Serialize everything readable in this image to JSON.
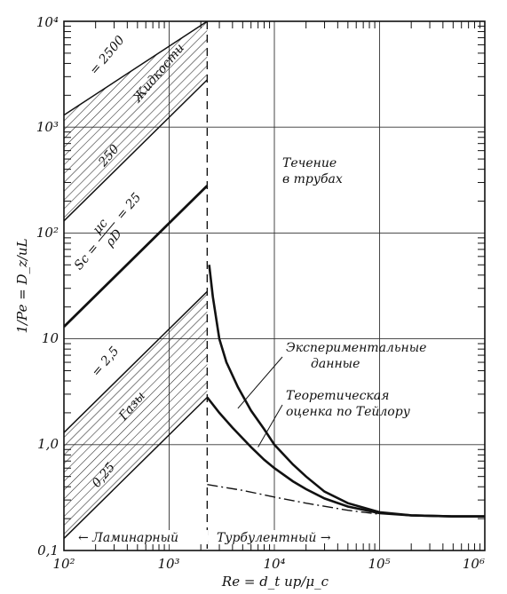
{
  "chart_data": {
    "type": "line",
    "title": "",
    "xscale": "log",
    "yscale": "log",
    "xlim": [
      100,
      1000000
    ],
    "ylim": [
      0.1,
      10000
    ],
    "grid": true,
    "xlabel": "Re = d_t up/μ_c",
    "ylabel": "1/Pe = D_z/uL",
    "x_tick_labels": [
      "10²",
      "10³",
      "10⁴",
      "10⁵",
      "10⁶"
    ],
    "y_tick_labels": [
      "0,1",
      "1,0",
      "10",
      "10²",
      "10³",
      "10⁴"
    ],
    "transition_re": 2300,
    "laminar_lines": [
      {
        "sc": "2500",
        "label": "= 2500",
        "x": [
          100,
          2300
        ],
        "y": [
          1300,
          10000
        ],
        "style": "thin"
      },
      {
        "sc": "250",
        "label": "250",
        "x": [
          100,
          2300
        ],
        "y": [
          130,
          2800
        ],
        "style": "thin"
      },
      {
        "sc": "25",
        "label": "Sc = μc/ρD = 25",
        "x": [
          100,
          2300
        ],
        "y": [
          13,
          280
        ],
        "style": "thick"
      },
      {
        "sc": "2.5",
        "label": "= 2,5",
        "x": [
          100,
          2300
        ],
        "y": [
          1.3,
          28
        ],
        "style": "thin"
      },
      {
        "sc": "0.25",
        "label": "0,25",
        "x": [
          100,
          2300
        ],
        "y": [
          0.13,
          2.8
        ],
        "style": "thin"
      }
    ],
    "hatched_bands": [
      {
        "name": "liquids",
        "label": "Жидкости",
        "upper_sc": "2500",
        "lower_sc": "250"
      },
      {
        "name": "gases",
        "label": "Газы",
        "upper_sc": "2.5",
        "lower_sc": "0.25"
      }
    ],
    "series": [
      {
        "name": "Экспериментальные данные",
        "style": "thick",
        "x": [
          2400,
          2600,
          3000,
          3500,
          4500,
          6000,
          8000,
          10000,
          15000,
          20000,
          30000,
          50000,
          100000,
          200000,
          500000,
          1000000
        ],
        "y": [
          50,
          25,
          10,
          6,
          3.5,
          2.1,
          1.4,
          1.0,
          0.65,
          0.5,
          0.36,
          0.28,
          0.23,
          0.215,
          0.21,
          0.21
        ]
      },
      {
        "name": "Теоретическая оценка по Тейлору",
        "style": "thick",
        "x": [
          2300,
          3000,
          4000,
          6000,
          8000,
          10000,
          15000,
          20000,
          30000,
          50000,
          100000,
          200000,
          500000,
          1000000
        ],
        "y": [
          2.8,
          2.0,
          1.45,
          0.95,
          0.72,
          0.6,
          0.45,
          0.38,
          0.31,
          0.26,
          0.225,
          0.215,
          0.21,
          0.21
        ]
      },
      {
        "name": "Gas extension",
        "style": "dashdot",
        "x": [
          2300,
          5000,
          10000,
          20000,
          50000,
          100000
        ],
        "y": [
          0.42,
          0.37,
          0.32,
          0.28,
          0.24,
          0.22
        ]
      }
    ],
    "annotations": {
      "liquids": "Жидкости",
      "gases": "Газы",
      "pipe_flow_line1": "Течение",
      "pipe_flow_line2": "в трубах",
      "experimental_line1": "Экспериментальные",
      "experimental_line2": "данные",
      "taylor_line1": "Теоретическая",
      "taylor_line2": "оценка по Тейлору",
      "laminar": "← Ламинарный",
      "turbulent": "Турбулентный →",
      "sc_2500": "= 2500",
      "sc_250": "250",
      "sc_25_prefix": "Sc =",
      "sc_25_num": "μc",
      "sc_25_den": "ρD",
      "sc_25_value": "= 25",
      "sc_2_5": "= 2,5",
      "sc_0_25": "0,25"
    }
  }
}
